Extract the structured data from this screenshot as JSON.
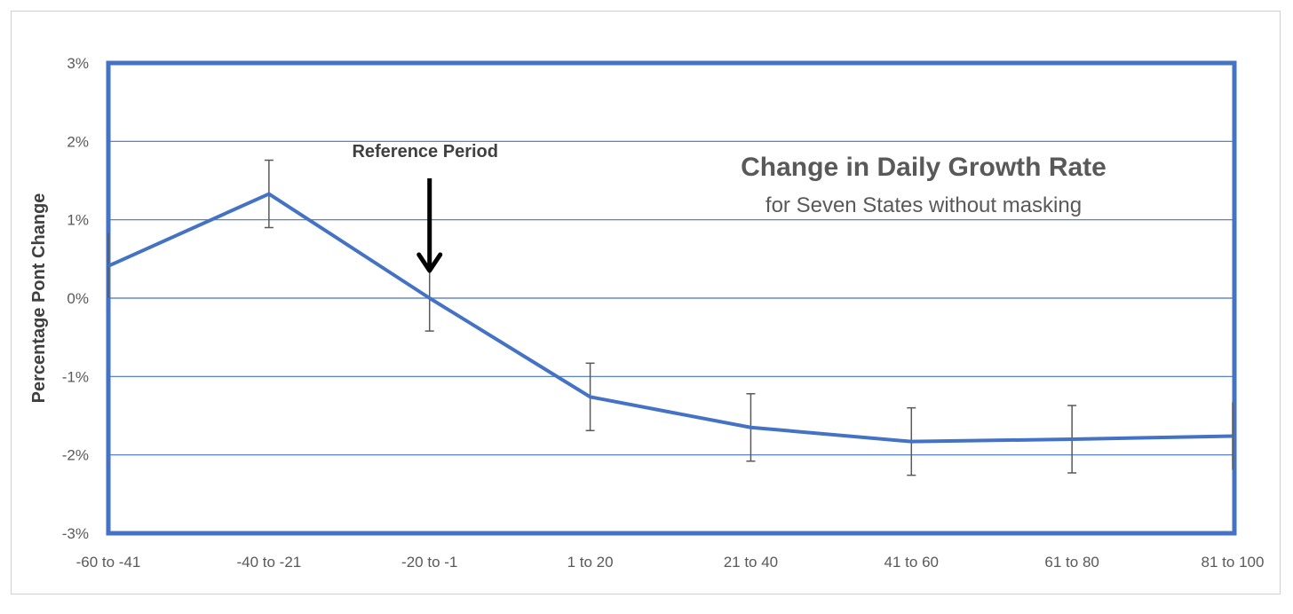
{
  "chart_data": {
    "type": "line",
    "title": "Change in Daily Growth Rate",
    "subtitle": "for Seven States without masking",
    "xlabel": "",
    "ylabel": "Percentage Pont Change",
    "categories": [
      "-60 to -41",
      "-40 to -21",
      "-20 to -1",
      "1 to 20",
      "21 to 40",
      "41 to 60",
      "61 to 80",
      "81 to 100"
    ],
    "series": [
      {
        "values": [
          0.41,
          1.33,
          0.0,
          -1.26,
          -1.65,
          -1.83,
          -1.8,
          -1.76
        ],
        "error_low": [
          0.0,
          0.9,
          -0.42,
          -1.69,
          -2.08,
          -2.26,
          -2.23,
          -2.19
        ],
        "error_high": [
          0.83,
          1.76,
          0.42,
          -0.83,
          -1.22,
          -1.4,
          -1.37,
          -1.33
        ]
      }
    ],
    "yticks": [
      "3%",
      "2%",
      "1%",
      "0%",
      "-1%",
      "-2%",
      "-3%"
    ],
    "ylim": [
      -3,
      3
    ],
    "grid": true,
    "annotation": {
      "text": "Reference Period",
      "category": "-20 to -1"
    },
    "colors": {
      "line": "#4472c4",
      "grid": "#4472c4",
      "error_bar": "#595959",
      "arrow": "#000000"
    }
  }
}
